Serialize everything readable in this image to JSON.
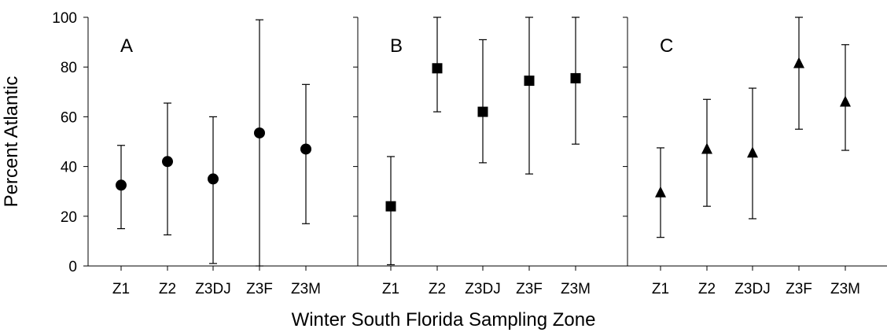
{
  "chart_data": {
    "type": "scatter",
    "xlabel": "Winter South Florida Sampling Zone",
    "ylabel": "Percent Atlantic",
    "ylim": [
      0,
      100
    ],
    "yticks": [
      0,
      20,
      40,
      60,
      80,
      100
    ],
    "categories": [
      "Z1",
      "Z2",
      "Z3DJ",
      "Z3F",
      "Z3M"
    ],
    "panels": [
      {
        "label": "A",
        "marker": "circle",
        "values": [
          32.5,
          42,
          35,
          53.5,
          47
        ],
        "lower": [
          15,
          12.5,
          1,
          0,
          17
        ],
        "upper": [
          48.5,
          65.5,
          60,
          99,
          73
        ]
      },
      {
        "label": "B",
        "marker": "square",
        "values": [
          24,
          79.5,
          62,
          74.5,
          75.5
        ],
        "lower": [
          0.5,
          62,
          41.5,
          37,
          49
        ],
        "upper": [
          44,
          100,
          91,
          100,
          100
        ]
      },
      {
        "label": "C",
        "marker": "triangle",
        "values": [
          29.5,
          47,
          45.5,
          81.5,
          66
        ],
        "lower": [
          11.5,
          24,
          19,
          55,
          46.5
        ],
        "upper": [
          47.5,
          67,
          71.5,
          100,
          89
        ]
      }
    ]
  }
}
